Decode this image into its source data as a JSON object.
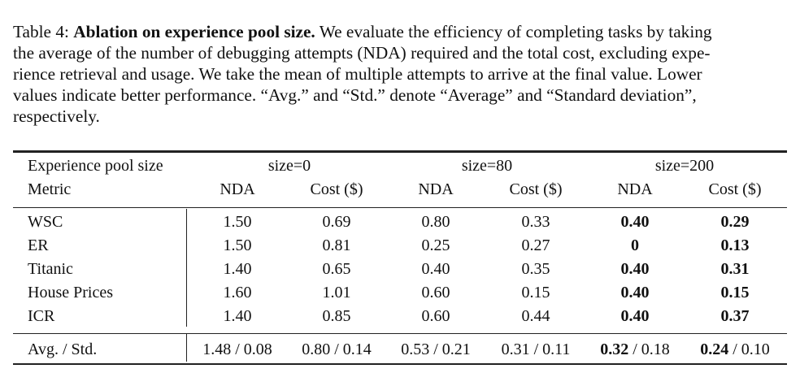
{
  "caption": {
    "label": "Table 4:",
    "title": "Ablation on experience pool size.",
    "line1": "We evaluate the efficiency of completing tasks by taking",
    "line2": "the average of the number of debugging attempts (NDA) required and the total cost, excluding expe-",
    "line3": "rience retrieval and usage. We take the mean of multiple attempts to arrive at the final value. Lower",
    "line4": "values indicate better performance. “Avg.” and “Std.” denote “Average” and “Standard deviation”,",
    "line5": "respectively."
  },
  "table": {
    "header_row1": {
      "label": "Experience pool size",
      "groups": [
        "size=0",
        "size=80",
        "size=200"
      ]
    },
    "header_row2": {
      "label": "Metric",
      "cols": [
        "NDA",
        "Cost ($)",
        "NDA",
        "Cost ($)",
        "NDA",
        "Cost ($)"
      ]
    },
    "rows": [
      {
        "name": "WSC",
        "cells": [
          "1.50",
          "0.69",
          "0.80",
          "0.33",
          "0.40",
          "0.29"
        ]
      },
      {
        "name": "ER",
        "cells": [
          "1.50",
          "0.81",
          "0.25",
          "0.27",
          "0",
          "0.13"
        ]
      },
      {
        "name": "Titanic",
        "cells": [
          "1.40",
          "0.65",
          "0.40",
          "0.35",
          "0.40",
          "0.31"
        ]
      },
      {
        "name": "House Prices",
        "cells": [
          "1.60",
          "1.01",
          "0.60",
          "0.15",
          "0.40",
          "0.15"
        ]
      },
      {
        "name": "ICR",
        "cells": [
          "1.40",
          "0.85",
          "0.60",
          "0.44",
          "0.40",
          "0.37"
        ]
      }
    ],
    "avg_row": {
      "name": "Avg. / Std.",
      "cells": [
        {
          "main": "1.48",
          "rest": " / 0.08"
        },
        {
          "main": "0.80",
          "rest": " / 0.14"
        },
        {
          "main": "0.53",
          "rest": " / 0.21"
        },
        {
          "main": "0.31",
          "rest": " / 0.11"
        },
        {
          "main": "0.32",
          "rest": " / 0.18"
        },
        {
          "main": "0.24",
          "rest": " / 0.10"
        }
      ]
    }
  }
}
